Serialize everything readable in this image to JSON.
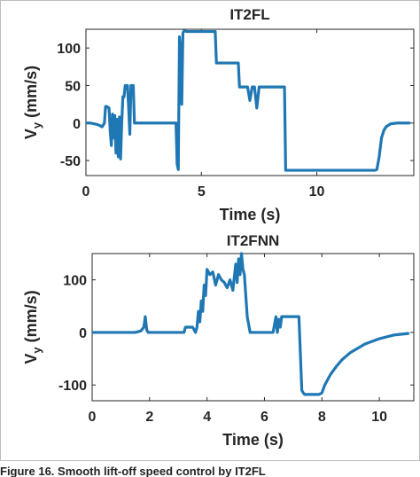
{
  "chart_data": [
    {
      "type": "line",
      "title": "IT2FL",
      "xlabel": "Time (s)",
      "ylabel_main": "V",
      "ylabel_sub": "y",
      "ylabel_rest": " (mm/s)",
      "xlim": [
        0,
        14.2
      ],
      "ylim": [
        -70,
        125
      ],
      "xticks": [
        0,
        5,
        10
      ],
      "yticks": [
        -50,
        0,
        50,
        100
      ],
      "grid": false,
      "line_color": "#1f77b4",
      "series": [
        {
          "x": [
            0,
            0.2,
            0.5,
            0.7,
            0.8,
            0.85,
            0.9,
            1.0,
            1.05,
            1.1,
            1.15,
            1.2,
            1.25,
            1.3,
            1.35,
            1.4,
            1.45,
            1.5,
            1.55,
            1.6,
            1.65,
            1.7,
            1.75,
            1.8,
            1.85,
            1.9,
            1.95,
            2.0,
            2.05,
            2.1,
            2.15,
            2.2,
            2.5,
            3.0,
            3.5,
            3.9,
            3.95,
            4.0,
            4.05,
            4.1,
            4.15,
            4.2,
            4.25,
            4.3,
            4.35,
            4.4,
            4.5,
            5.0,
            5.5,
            5.6,
            5.65,
            5.7,
            6.0,
            6.5,
            6.6,
            6.65,
            6.7,
            6.75,
            6.8,
            6.85,
            7.0,
            7.1,
            7.2,
            7.3,
            7.4,
            7.5,
            8.0,
            8.5,
            8.6,
            8.65,
            9.0,
            10.0,
            11.0,
            12.0,
            12.4,
            12.5,
            12.6,
            12.7,
            12.8,
            12.9,
            13.0,
            13.2,
            13.5,
            14.0
          ],
          "y": [
            0,
            0,
            -2,
            -5,
            0,
            22,
            22,
            20,
            -10,
            -30,
            12,
            -20,
            10,
            -40,
            5,
            -45,
            8,
            -48,
            0,
            35,
            35,
            50,
            50,
            50,
            20,
            -15,
            50,
            50,
            50,
            0,
            0,
            0,
            0,
            0,
            0,
            0,
            -55,
            -62,
            115,
            95,
            25,
            120,
            123,
            123,
            122,
            122,
            122,
            122,
            122,
            122,
            80,
            80,
            80,
            80,
            80,
            48,
            48,
            48,
            48,
            48,
            48,
            30,
            48,
            48,
            20,
            48,
            48,
            48,
            48,
            -63,
            -63,
            -63,
            -63,
            -63,
            -63,
            -63,
            -62,
            -45,
            -20,
            -10,
            -5,
            -1,
            0,
            0
          ]
        }
      ]
    },
    {
      "type": "line",
      "title": "IT2FNN",
      "xlabel": "Time (s)",
      "ylabel_main": "V",
      "ylabel_sub": "y",
      "ylabel_rest": " (mm/s)",
      "xlim": [
        0,
        11.2
      ],
      "ylim": [
        -130,
        150
      ],
      "xticks": [
        0,
        2,
        4,
        6,
        8,
        10
      ],
      "yticks": [
        -100,
        0,
        100
      ],
      "grid": false,
      "line_color": "#1f77b4",
      "series": [
        {
          "x": [
            0,
            0.5,
            1.0,
            1.5,
            1.7,
            1.8,
            1.85,
            1.9,
            1.95,
            2.0,
            2.5,
            3.0,
            3.2,
            3.25,
            3.3,
            3.5,
            3.6,
            3.65,
            3.7,
            3.75,
            3.8,
            3.85,
            3.9,
            3.95,
            4.0,
            4.1,
            4.2,
            4.3,
            4.4,
            4.5,
            4.6,
            4.7,
            4.8,
            4.9,
            5.0,
            5.05,
            5.1,
            5.15,
            5.2,
            5.25,
            5.3,
            5.35,
            5.4,
            5.5,
            5.6,
            5.7,
            6.0,
            6.3,
            6.4,
            6.45,
            6.5,
            6.55,
            6.6,
            6.7,
            6.8,
            7.0,
            7.2,
            7.3,
            7.35,
            7.4,
            7.5,
            7.7,
            7.9,
            8.0,
            8.1,
            8.3,
            8.5,
            8.7,
            9.0,
            9.5,
            10.0,
            10.5,
            11.0
          ],
          "y": [
            0,
            0,
            0,
            0,
            3,
            10,
            30,
            5,
            0,
            0,
            0,
            0,
            0,
            10,
            10,
            10,
            0,
            10,
            40,
            20,
            60,
            40,
            90,
            70,
            120,
            110,
            115,
            90,
            110,
            100,
            95,
            85,
            100,
            80,
            130,
            95,
            140,
            110,
            150,
            120,
            110,
            70,
            30,
            0,
            0,
            0,
            0,
            0,
            30,
            0,
            25,
            10,
            30,
            30,
            30,
            30,
            30,
            -110,
            -115,
            -118,
            -118,
            -118,
            -118,
            -115,
            -100,
            -80,
            -65,
            -52,
            -38,
            -22,
            -12,
            -5,
            -2
          ]
        }
      ]
    }
  ],
  "caption": "Figure 16. Smooth lift-off speed control by IT2FL"
}
